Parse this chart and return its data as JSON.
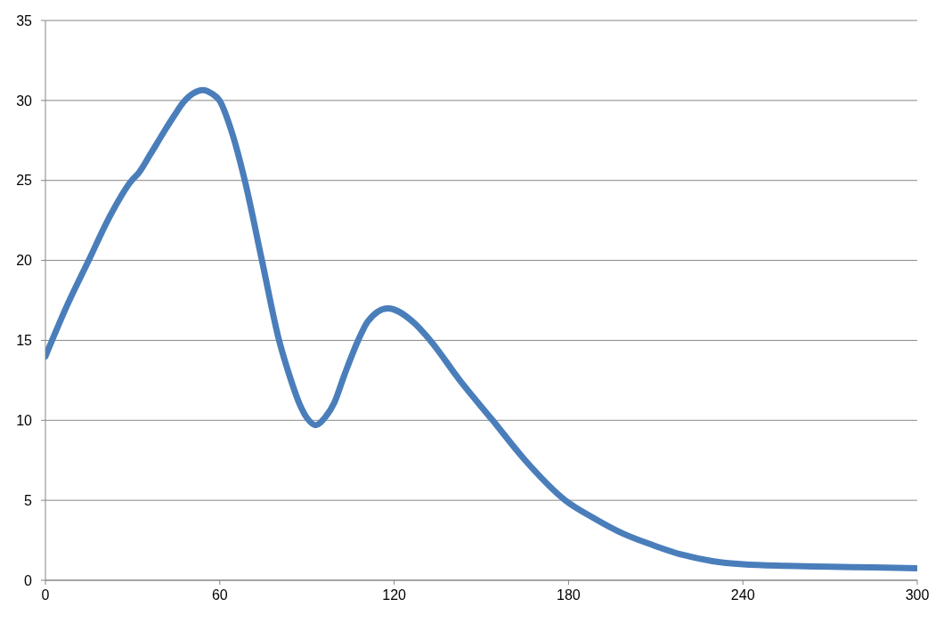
{
  "chart_data": {
    "type": "line",
    "x": [
      0,
      7.5,
      14.9,
      22,
      29.7,
      31.8,
      36,
      41,
      44.5,
      47.5,
      50.5,
      54.2,
      57.5,
      59.9,
      64,
      68.6,
      74.5,
      80.4,
      83.8,
      87.5,
      90.2,
      93,
      96.3,
      99.4,
      103,
      107.6,
      111,
      117.8,
      126.8,
      132.4,
      142.6,
      153.9,
      165.1,
      178.9,
      188.6,
      199,
      209,
      219,
      229.5,
      240,
      255,
      270,
      285,
      300
    ],
    "series": [
      {
        "color": "#4a7ebb",
        "values": [
          14,
          17.2,
          20,
          22.7,
          25,
          25.4,
          26.6,
          28.1,
          29.1,
          29.9,
          30.4,
          30.65,
          30.4,
          30,
          28.1,
          25,
          20,
          15,
          12.9,
          11,
          10.1,
          9.7,
          10.2,
          11.1,
          12.9,
          15,
          16.2,
          17,
          16.1,
          15,
          12.5,
          10,
          7.5,
          5,
          3.9,
          2.9,
          2.2,
          1.6,
          1.2,
          1,
          0.9,
          0.85,
          0.8,
          0.75
        ]
      }
    ],
    "xlim": [
      0,
      300
    ],
    "xticks": [
      0,
      60,
      120,
      180,
      240,
      300
    ],
    "ylim": [
      0,
      35
    ],
    "yticks": [
      0,
      5,
      10,
      15,
      20,
      25,
      30,
      35
    ],
    "grid": "y"
  }
}
